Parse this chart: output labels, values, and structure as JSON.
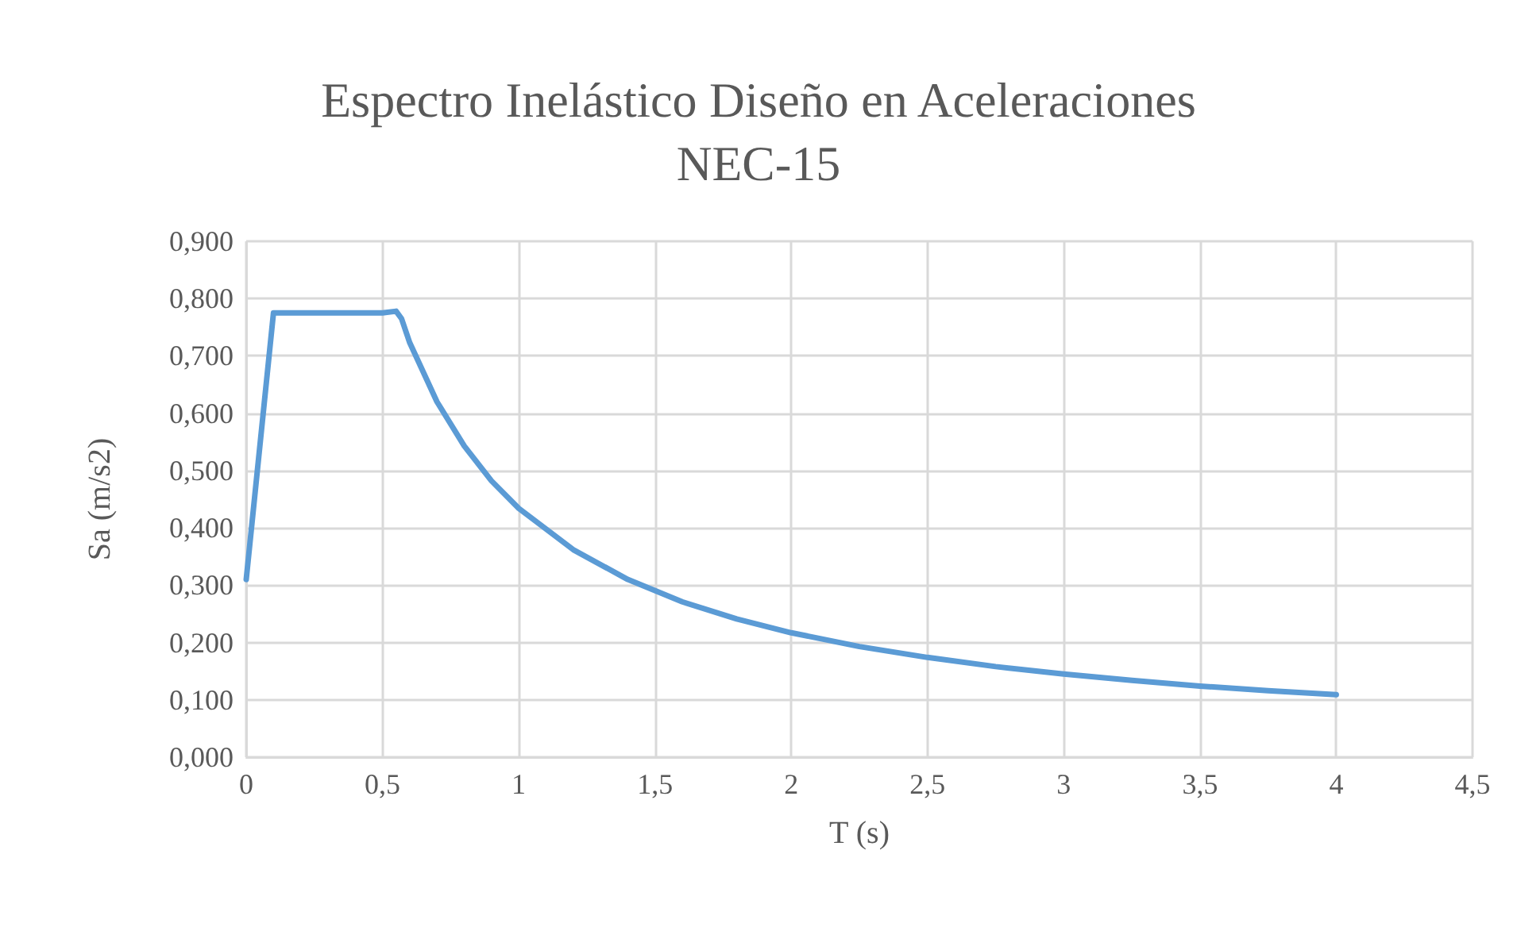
{
  "chart_data": {
    "type": "line",
    "title": "Espectro Inelástico Diseño en Aceleraciones\nNEC-15",
    "xlabel": "T (s)",
    "ylabel": "Sa (m/s2)",
    "x": [
      0,
      0.1,
      0.3,
      0.5,
      0.55,
      0.57,
      0.6,
      0.7,
      0.8,
      0.9,
      1,
      1.2,
      1.4,
      1.6,
      1.8,
      2,
      2.25,
      2.5,
      2.75,
      3,
      3.25,
      3.5,
      3.75,
      4
    ],
    "series": [
      {
        "color": "#5b9bd5",
        "values": [
          0.31,
          0.775,
          0.775,
          0.775,
          0.778,
          0.765,
          0.723,
          0.62,
          0.543,
          0.482,
          0.434,
          0.362,
          0.31,
          0.271,
          0.241,
          0.217,
          0.193,
          0.174,
          0.158,
          0.145,
          0.134,
          0.124,
          0.116,
          0.109
        ]
      }
    ],
    "xlim": [
      0,
      4.5
    ],
    "xticks": [
      {
        "value": 0,
        "label": "0"
      },
      {
        "value": 0.5,
        "label": "0,5"
      },
      {
        "value": 1,
        "label": "1"
      },
      {
        "value": 1.5,
        "label": "1,5"
      },
      {
        "value": 2,
        "label": "2"
      },
      {
        "value": 2.5,
        "label": "2,5"
      },
      {
        "value": 3,
        "label": "3"
      },
      {
        "value": 3.5,
        "label": "3,5"
      },
      {
        "value": 4,
        "label": "4"
      },
      {
        "value": 4.5,
        "label": "4,5"
      }
    ],
    "ylim": [
      0,
      0.9
    ],
    "yticks": [
      {
        "value": 0,
        "label": "0,000"
      },
      {
        "value": 0.1,
        "label": "0,100"
      },
      {
        "value": 0.2,
        "label": "0,200"
      },
      {
        "value": 0.3,
        "label": "0,300"
      },
      {
        "value": 0.4,
        "label": "0,400"
      },
      {
        "value": 0.5,
        "label": "0,500"
      },
      {
        "value": 0.6,
        "label": "0,600"
      },
      {
        "value": 0.7,
        "label": "0,700"
      },
      {
        "value": 0.8,
        "label": "0,800"
      },
      {
        "value": 0.9,
        "label": "0,900"
      }
    ],
    "grid": true,
    "marker": "none",
    "line_style": "solid"
  }
}
